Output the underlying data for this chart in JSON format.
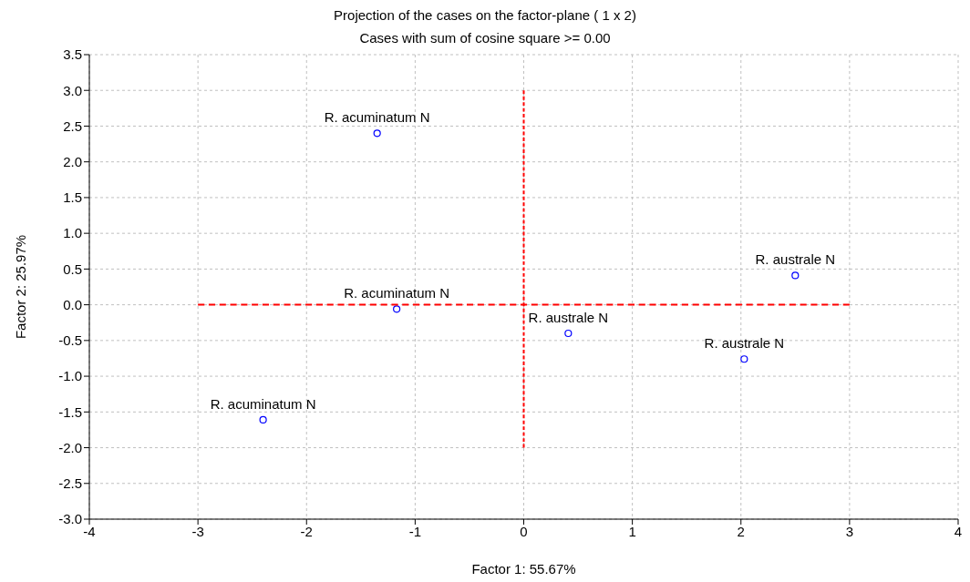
{
  "chart_data": {
    "type": "scatter",
    "title": "Projection of the cases on the factor-plane (  1 x   2)",
    "subtitle": "Cases with sum of cosine square >= 0.00",
    "xlabel": "Factor 1: 55.67%",
    "ylabel": "Factor 2: 25.97%",
    "series": [
      {
        "type": "scatter",
        "color": "#0000ff",
        "marker": "circle",
        "x": [
          -1.35,
          -1.17,
          -2.4,
          0.41,
          2.5,
          2.03
        ],
        "values": [
          2.4,
          -0.06,
          -1.61,
          -0.4,
          0.41,
          -0.76
        ]
      },
      {
        "type": "line",
        "color": "#ff0000",
        "line_style": "dashed",
        "marker": "none",
        "x": [
          -3,
          3
        ],
        "values": [
          0,
          0
        ]
      },
      {
        "type": "line",
        "color": "#ff0000",
        "line_style": "dashed",
        "marker": "none",
        "x": [
          0,
          0
        ],
        "values": [
          -2,
          3
        ]
      }
    ],
    "annotations": [
      {
        "text": "R. acuminatum N",
        "x": -1.35,
        "y": 2.4
      },
      {
        "text": "R. acuminatum N",
        "x": -1.17,
        "y": -0.06
      },
      {
        "text": "R. acuminatum N",
        "x": -2.4,
        "y": -1.61
      },
      {
        "text": "R. australe N",
        "x": 0.41,
        "y": -0.4
      },
      {
        "text": "R. australe N",
        "x": 2.5,
        "y": 0.41
      },
      {
        "text": "R. australe N",
        "x": 2.03,
        "y": -0.76
      }
    ],
    "xlim": [
      -4,
      4
    ],
    "xticks": [
      -4,
      -3,
      -2,
      -1,
      0,
      1,
      2,
      3,
      4
    ],
    "ylim": [
      -3.0,
      3.5
    ],
    "yticks": [
      {
        "value": -3,
        "label": "-3.0"
      },
      {
        "value": -2.5,
        "label": "-2.5"
      },
      {
        "value": -2,
        "label": "-2.0"
      },
      {
        "value": -1.5,
        "label": "-1.5"
      },
      {
        "value": -1,
        "label": "-1.0"
      },
      {
        "value": -0.5,
        "label": "-0.5"
      },
      {
        "value": 0,
        "label": "0.0"
      },
      {
        "value": 0.5,
        "label": "0.5"
      },
      {
        "value": 1,
        "label": "1.0"
      },
      {
        "value": 1.5,
        "label": "1.5"
      },
      {
        "value": 2,
        "label": "2.0"
      },
      {
        "value": 2.5,
        "label": "2.5"
      },
      {
        "value": 3,
        "label": "3.0"
      },
      {
        "value": 3.5,
        "label": "3.5"
      }
    ],
    "grid": true
  }
}
